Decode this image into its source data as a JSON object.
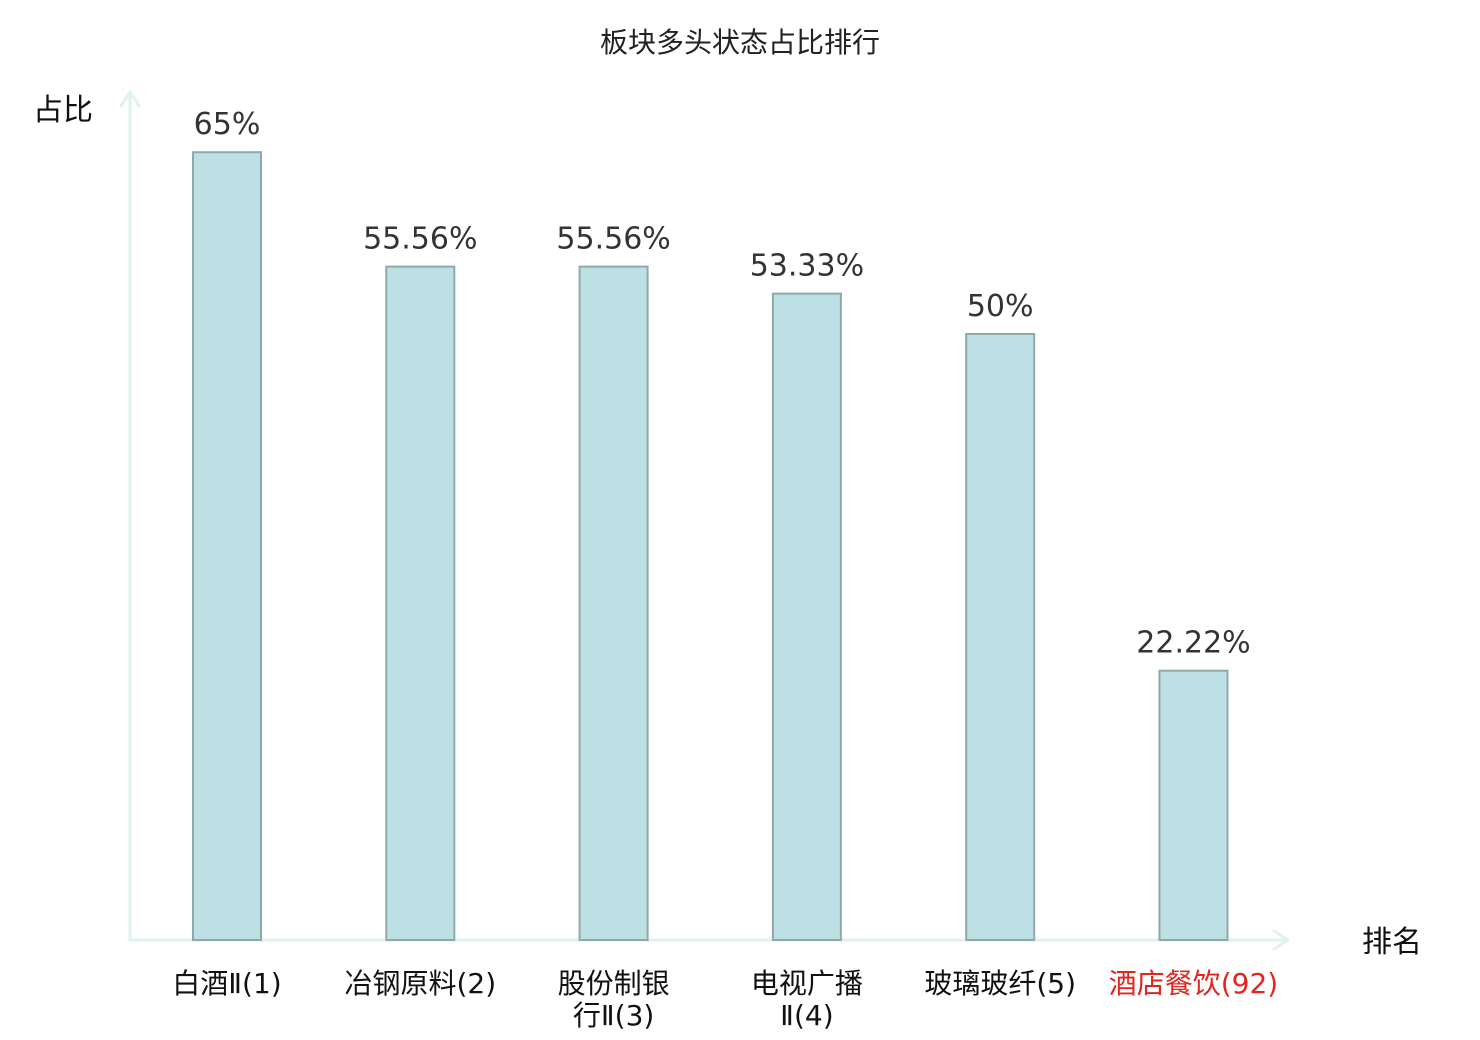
{
  "chart_data": {
    "type": "bar",
    "title": "板块多头状态占比排行",
    "xlabel": "排名",
    "ylabel": "占比",
    "ylim": [
      0,
      70
    ],
    "categories": [
      "白酒Ⅱ(1)",
      "冶钢原料(2)",
      "股份制银行Ⅱ(3)",
      "电视广播Ⅱ(4)",
      "玻璃玻纤(5)",
      "酒店餐饮(92)"
    ],
    "category_lines": [
      [
        "白酒Ⅱ(1)"
      ],
      [
        "冶钢原料(2)"
      ],
      [
        "股份制银",
        "行Ⅱ(3)"
      ],
      [
        "电视广播",
        "Ⅱ(4)"
      ],
      [
        "玻璃玻纤(5)"
      ],
      [
        "酒店餐饮(92)"
      ]
    ],
    "values": [
      65,
      55.56,
      55.56,
      53.33,
      50,
      22.22
    ],
    "value_labels": [
      "65%",
      "55.56%",
      "55.56%",
      "53.33%",
      "50%",
      "22.22%"
    ],
    "highlight_index": 5,
    "grid": false,
    "legend": "none"
  },
  "colors": {
    "bar_fill": "#bce0e3",
    "bar_stroke": "#8fa9ab",
    "axis": "#dff2ef",
    "highlight_text": "#e0261f",
    "text": "#111111",
    "value_text": "#333333"
  }
}
